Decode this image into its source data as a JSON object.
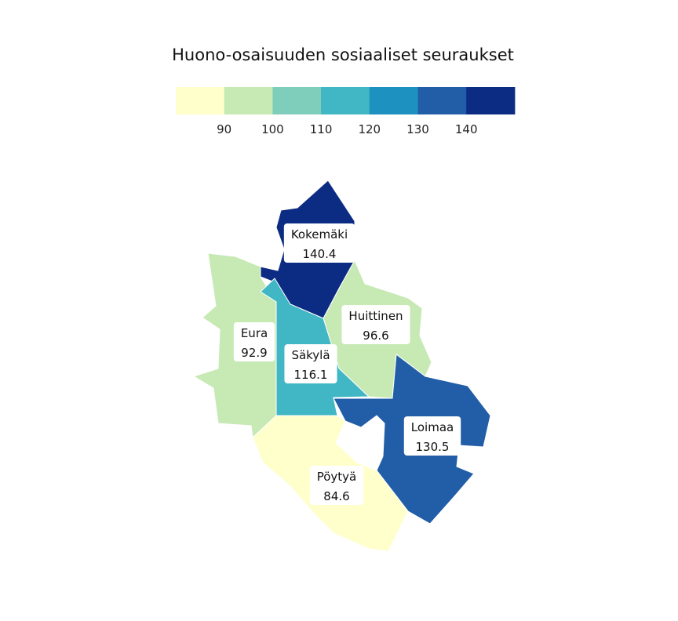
{
  "title": "Huono-osaisuuden sosiaaliset seuraukset",
  "legend": {
    "bins": [
      {
        "color": "#FFFFCC"
      },
      {
        "color": "#C7E9B4"
      },
      {
        "color": "#7FCDBB"
      },
      {
        "color": "#41B6C4"
      },
      {
        "color": "#1D91C0"
      },
      {
        "color": "#225EA8"
      },
      {
        "color": "#0C2C84"
      }
    ],
    "ticks": [
      "90",
      "100",
      "110",
      "120",
      "130",
      "140"
    ]
  },
  "chart_data": {
    "type": "choropleth",
    "title": "Huono-osaisuuden sosiaaliset seuraukset",
    "breaks": [
      90,
      100,
      110,
      120,
      130,
      140
    ],
    "regions": [
      {
        "name": "Kokemäki",
        "value": "140.4",
        "color": "#0C2C84"
      },
      {
        "name": "Eura",
        "value": "92.9",
        "color": "#C7E9B4"
      },
      {
        "name": "Huittinen",
        "value": "96.6",
        "color": "#C7E9B4"
      },
      {
        "name": "Säkylä",
        "value": "116.1",
        "color": "#41B6C4"
      },
      {
        "name": "Loimaa",
        "value": "130.5",
        "color": "#225EA8"
      },
      {
        "name": "Pöytyä",
        "value": "84.6",
        "color": "#FFFFCC"
      }
    ]
  }
}
